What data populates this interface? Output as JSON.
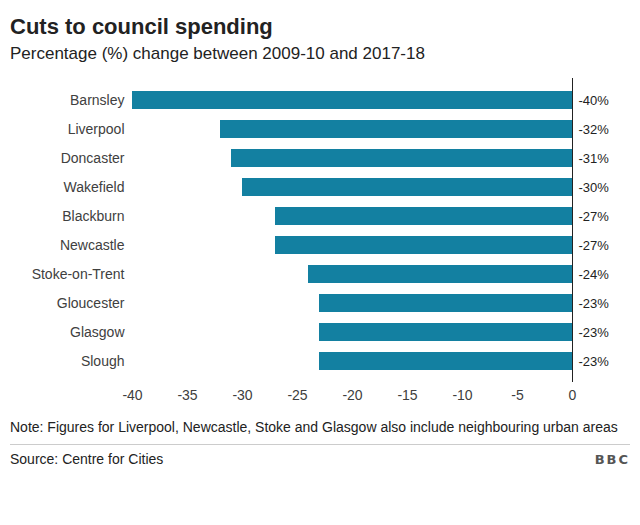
{
  "chart_data": {
    "type": "bar",
    "orientation": "horizontal",
    "title": "Cuts to council spending",
    "subtitle": "Percentage (%) change between 2009-10 and 2017-18",
    "note": "Note: Figures for Liverpool, Newcastle, Stoke and Glasgow also include neighbouring urban areas",
    "source": "Source: Centre for Cities",
    "logo": "BBC",
    "categories": [
      "Barnsley",
      "Liverpool",
      "Doncaster",
      "Wakefield",
      "Blackburn",
      "Newcastle",
      "Stoke-on-Trent",
      "Gloucester",
      "Glasgow",
      "Slough"
    ],
    "values": [
      -40,
      -32,
      -31,
      -30,
      -27,
      -27,
      -24,
      -23,
      -23,
      -23
    ],
    "value_labels": [
      "-40%",
      "-32%",
      "-31%",
      "-30%",
      "-27%",
      "-27%",
      "-24%",
      "-23%",
      "-23%",
      "-23%"
    ],
    "data_labels": true,
    "color": "#1380a1",
    "xlim": [
      -40,
      0
    ],
    "xticks": [
      -40,
      -35,
      -30,
      -25,
      -20,
      -15,
      -10,
      -5,
      0
    ],
    "grid": false
  }
}
